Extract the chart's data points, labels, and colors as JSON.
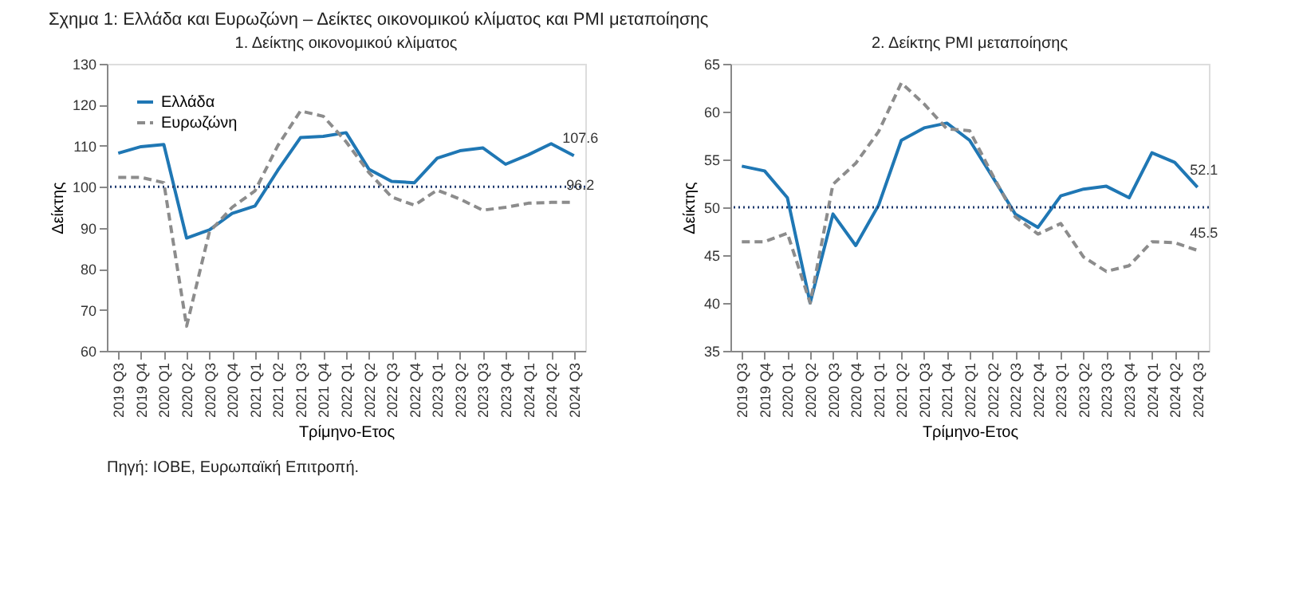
{
  "chart_data": [
    {
      "type": "line",
      "title": "1. Δείκτης οικονομικού κλίματος",
      "xlabel": "Τρίμηνο-Ετος",
      "ylabel": "Δείκτης",
      "categories": [
        "2019 Q3",
        "2019 Q4",
        "2020 Q1",
        "2020 Q2",
        "2020 Q3",
        "2020 Q4",
        "2021 Q1",
        "2021 Q2",
        "2021 Q3",
        "2021 Q4",
        "2022 Q1",
        "2022 Q2",
        "2022 Q3",
        "2022 Q4",
        "2023 Q1",
        "2023 Q2",
        "2023 Q3",
        "2023 Q4",
        "2024 Q1",
        "2024 Q2",
        "2024 Q3"
      ],
      "series": [
        {
          "name": "Ελλάδα",
          "color": "#1f77b4",
          "line_style": "solid",
          "values": [
            108.2,
            109.8,
            110.3,
            87.5,
            89.5,
            93.5,
            95.3,
            104,
            112,
            112.3,
            113.2,
            104.3,
            101.3,
            101,
            107,
            108.8,
            109.5,
            105.5,
            107.8,
            110.5,
            107.6
          ]
        },
        {
          "name": "Ευρωζώνη",
          "color": "#8c8c8c",
          "line_style": "dashed",
          "values": [
            102.3,
            102.3,
            101,
            66,
            89,
            95,
            99,
            110,
            118.5,
            117.2,
            111,
            103.5,
            97.5,
            95.5,
            99.2,
            97,
            94.3,
            95,
            96,
            96.2,
            96.2
          ]
        }
      ],
      "ylim": [
        60,
        130
      ],
      "yticks": [
        60,
        70,
        80,
        90,
        100,
        110,
        120,
        130
      ],
      "grid": false,
      "legend": "top left",
      "marker": "none",
      "ref_lines": [
        {
          "axis": "y",
          "value": 100,
          "color": "#1f3a6e",
          "line_style": "dotted"
        }
      ],
      "annotations": [
        "Σχημα 1: Ελλάδα και Ευρωζώνη – Δείκτες οικονομικού κλίματος και PMI μεταποίησης",
        "Πηγή: ΙΟΒΕ, Ευρωπαϊκή Επιτροπή.",
        {
          "text": "107.6",
          "x": "2024 Q3",
          "y": 107.6
        },
        {
          "text": "96.2",
          "x": "2024 Q3",
          "y": 96.2
        }
      ]
    },
    {
      "type": "line",
      "title": "2. Δείκτης PMI μεταποίησης",
      "xlabel": "Τρίμηνο-Ετος",
      "ylabel": "Δείκτης",
      "categories": [
        "2019 Q3",
        "2019 Q4",
        "2020 Q1",
        "2020 Q2",
        "2020 Q3",
        "2020 Q4",
        "2021 Q1",
        "2021 Q2",
        "2021 Q3",
        "2021 Q4",
        "2022 Q1",
        "2022 Q2",
        "2022 Q3",
        "2022 Q4",
        "2023 Q1",
        "2023 Q2",
        "2023 Q3",
        "2023 Q4",
        "2024 Q1",
        "2024 Q2",
        "2024 Q3"
      ],
      "series": [
        {
          "name": "Ελλάδα",
          "color": "#1f77b4",
          "line_style": "solid",
          "values": [
            54.3,
            53.8,
            51,
            40,
            49.3,
            46,
            50.2,
            57,
            58.3,
            58.8,
            57,
            53.2,
            49.3,
            47.9,
            51.2,
            51.9,
            52.2,
            51,
            55.7,
            54.7,
            52.1
          ]
        },
        {
          "name": "Ευρωζώνη",
          "color": "#8c8c8c",
          "line_style": "dashed",
          "values": [
            46.4,
            46.4,
            47.3,
            40,
            52.4,
            54.6,
            57.9,
            63,
            60.8,
            58.2,
            58,
            53.4,
            49,
            47.2,
            48.3,
            44.8,
            43.3,
            43.9,
            46.4,
            46.3,
            45.5
          ]
        }
      ],
      "ylim": [
        35,
        65
      ],
      "yticks": [
        35,
        40,
        45,
        50,
        55,
        60,
        65
      ],
      "grid": false,
      "legend": "top left",
      "marker": "none",
      "ref_lines": [
        {
          "axis": "y",
          "value": 50,
          "color": "#1f3a6e",
          "line_style": "dotted"
        }
      ],
      "annotations": [
        {
          "text": "52.1",
          "x": "2024 Q3",
          "y": 52.1
        },
        {
          "text": "45.5",
          "x": "2024 Q3",
          "y": 45.5
        }
      ]
    }
  ]
}
